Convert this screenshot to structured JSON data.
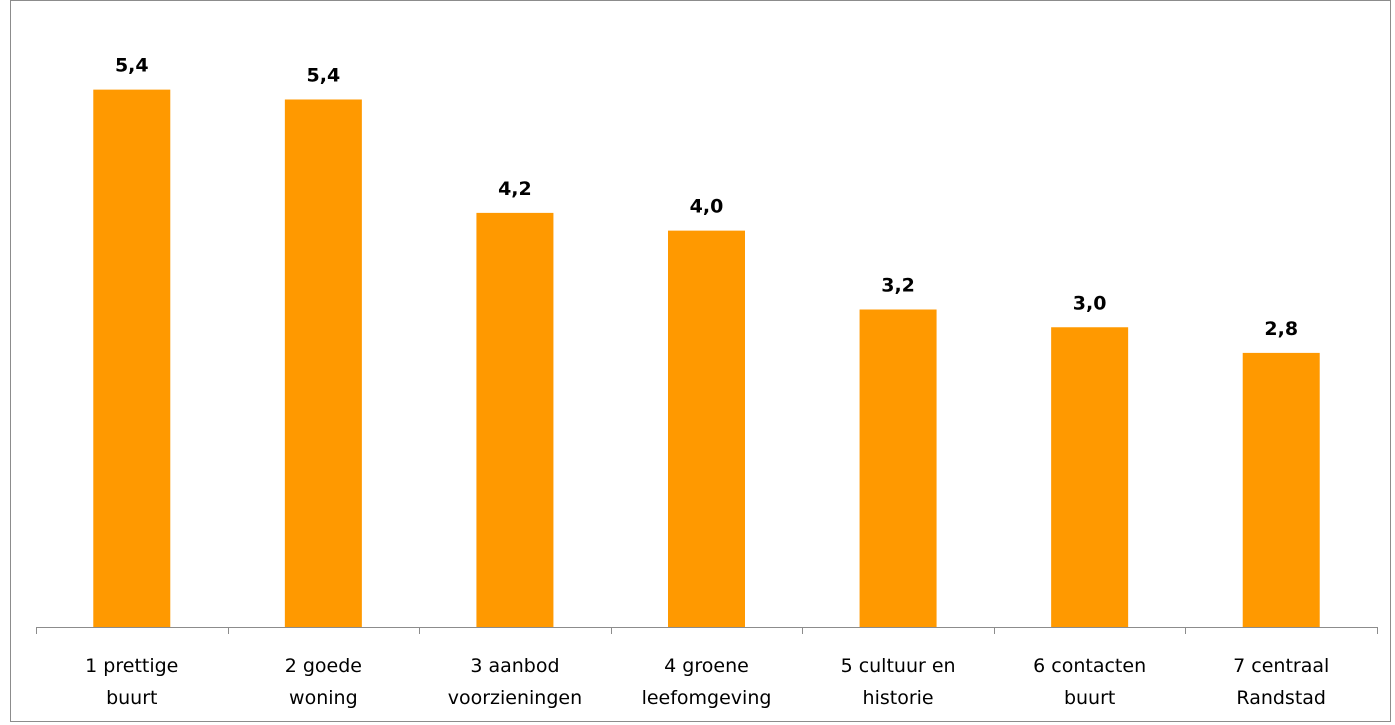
{
  "chart_data": {
    "type": "bar",
    "title": "",
    "xlabel": "",
    "ylabel": "",
    "ylim": [
      0,
      6
    ],
    "grid": false,
    "bar_color": "#ff9900",
    "categories": [
      [
        "1 prettige",
        "buurt"
      ],
      [
        "2 goede",
        "woning"
      ],
      [
        "3 aanbod",
        "voorzieningen"
      ],
      [
        "4 groene",
        "leefomgeving"
      ],
      [
        "5 cultuur en",
        "historie"
      ],
      [
        "6 contacten",
        "buurt"
      ],
      [
        "7 centraal",
        "Randstad"
      ]
    ],
    "values": [
      5.45,
      5.35,
      4.2,
      4.02,
      3.22,
      3.04,
      2.78
    ],
    "value_labels": [
      "5,4",
      "5,4",
      "4,2",
      "4,0",
      "3,2",
      "3,0",
      "2,8"
    ]
  }
}
